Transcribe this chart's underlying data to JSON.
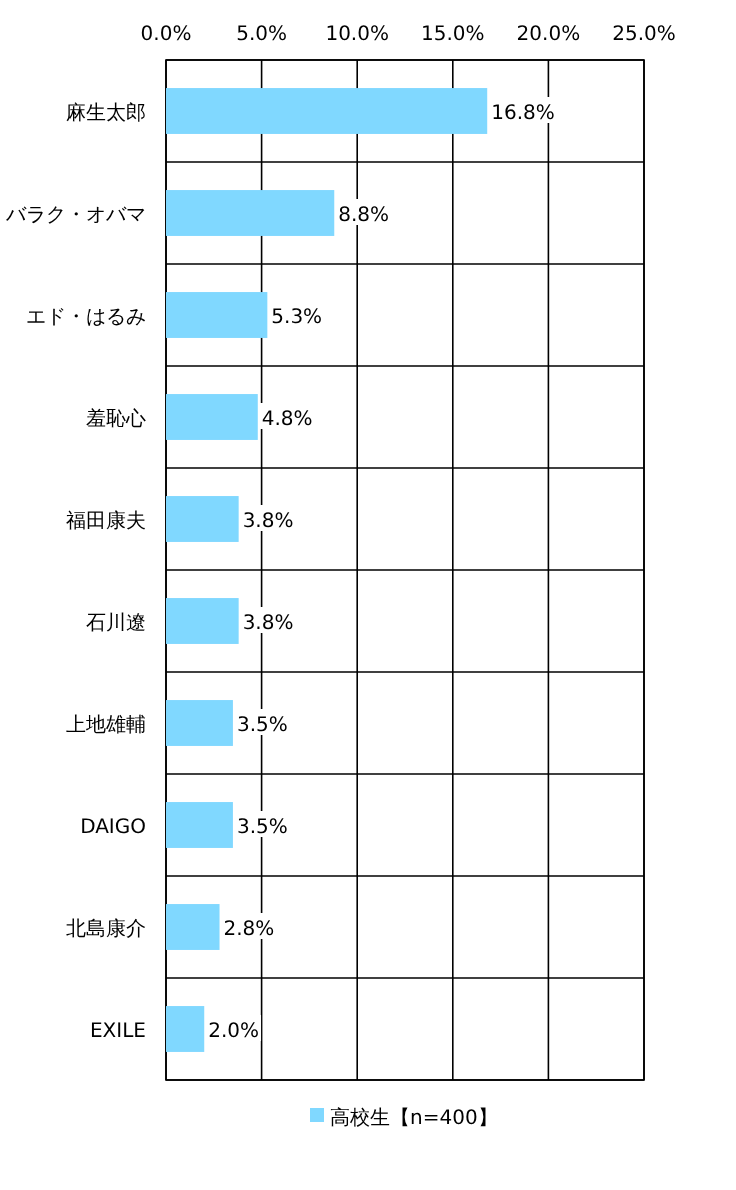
{
  "chart_data": {
    "type": "bar",
    "orientation": "horizontal",
    "categories": [
      "麻生太郎",
      "バラク・オバマ",
      "エド・はるみ",
      "羞恥心",
      "福田康夫",
      "石川遼",
      "上地雄輔",
      "DAIGO",
      "北島康介",
      "EXILE"
    ],
    "series": [
      {
        "name": "高校生【n=400】",
        "color": "#80d8ff",
        "values": [
          16.8,
          8.8,
          5.3,
          4.8,
          3.8,
          3.8,
          3.5,
          3.5,
          2.8,
          2.0
        ],
        "value_labels": [
          "16.8%",
          "8.8%",
          "5.3%",
          "4.8%",
          "3.8%",
          "3.8%",
          "3.5%",
          "3.5%",
          "2.8%",
          "2.0%"
        ]
      }
    ],
    "xlim": [
      0,
      25
    ],
    "xticks": [
      {
        "value": 0,
        "label": "0.0%"
      },
      {
        "value": 5,
        "label": "5.0%"
      },
      {
        "value": 10,
        "label": "10.0%"
      },
      {
        "value": 15,
        "label": "15.0%"
      },
      {
        "value": 20,
        "label": "20.0%"
      },
      {
        "value": 25,
        "label": "25.0%"
      }
    ],
    "grid": true,
    "legend": "bottom"
  }
}
